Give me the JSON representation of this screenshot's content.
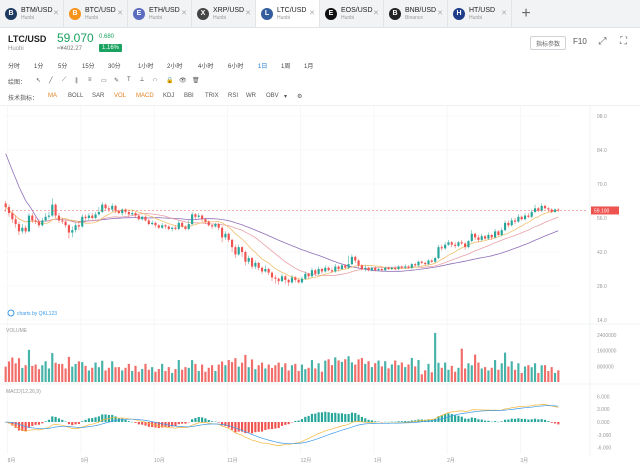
{
  "tabs": [
    {
      "symbol": "BTM/USD",
      "exchange": "Huobi",
      "icon": "btm-coin-icon",
      "color": "#1e3a5f",
      "active": false
    },
    {
      "symbol": "BTC/USD",
      "exchange": "Huobi",
      "icon": "btc-coin-icon",
      "color": "#f7931a",
      "active": false
    },
    {
      "symbol": "ETH/USD",
      "exchange": "Huobi",
      "icon": "eth-coin-icon",
      "color": "#5c6bc0",
      "active": false
    },
    {
      "symbol": "XRP/USD",
      "exchange": "Huobi",
      "icon": "xrp-coin-icon",
      "color": "#444",
      "active": false
    },
    {
      "symbol": "LTC/USD",
      "exchange": "Huobi",
      "icon": "ltc-coin-icon",
      "color": "#345d9d",
      "active": true
    },
    {
      "symbol": "EOS/USD",
      "exchange": "Huobi",
      "icon": "eos-coin-icon",
      "color": "#111",
      "active": false
    },
    {
      "symbol": "BNB/USD",
      "exchange": "Binance",
      "icon": "bnb-coin-icon",
      "color": "#222",
      "active": false
    },
    {
      "symbol": "HT/USD",
      "exchange": "Huobi",
      "icon": "ht-coin-icon",
      "color": "#1f3c88",
      "active": false
    }
  ],
  "add_tab": "+",
  "header": {
    "pair": "LTC/USD",
    "exchange": "Huobi",
    "price": "59.070",
    "change": "0.680",
    "cny": "≈¥402.27",
    "percent": "1.16%",
    "settings_label": "指标参数",
    "f10": "F10"
  },
  "timeframes": [
    "分时",
    "1分",
    "5分",
    "15分",
    "30分",
    "1小时",
    "2小时",
    "4小时",
    "6小时",
    "1日",
    "1周",
    "1月"
  ],
  "selected_timeframe": "1日",
  "tools": {
    "label": "绘图：",
    "icons": [
      "cursor-icon",
      "line-icon",
      "ray-icon",
      "parallel-icon",
      "fib-icon",
      "rect-icon",
      "brush-icon",
      "text-icon",
      "ruler-icon",
      "magnet-icon",
      "lock-icon",
      "eye-icon",
      "trash-icon"
    ]
  },
  "indicators": {
    "label": "技术指标：",
    "items": [
      "MA",
      "BOLL",
      "SAR",
      "VOL",
      "MACD",
      "KDJ",
      "BBI",
      "TRIX",
      "RSI",
      "WR",
      "OBV"
    ],
    "active": [
      "MA",
      "VOL",
      "MACD"
    ]
  },
  "chart_data": {
    "type": "candlestick",
    "x_ticks": [
      "8月",
      "9月",
      "10月",
      "11月",
      "12月",
      "1月",
      "2月",
      "3月"
    ],
    "price_axis": {
      "ticks": [
        98.0,
        84.0,
        70.0,
        56.0,
        42.0,
        28.0,
        14.0
      ],
      "range": [
        14,
        98
      ]
    },
    "last_price": 59.1,
    "last_price_label": "59.100",
    "watermark": "charts by QKL123",
    "candles": [
      [
        62.0,
        60.5,
        63.0,
        58.5
      ],
      [
        60.5,
        58.0,
        61.5,
        56.5
      ],
      [
        58.0,
        55.5,
        59.0,
        54.0
      ],
      [
        55.5,
        53.5,
        57.0,
        52.0
      ],
      [
        53.5,
        50.5,
        54.5,
        49.0
      ],
      [
        50.5,
        52.0,
        53.5,
        49.5
      ],
      [
        52.0,
        50.5,
        53.0,
        49.5
      ],
      [
        50.5,
        57.0,
        58.0,
        50.0
      ],
      [
        57.0,
        55.0,
        58.0,
        54.0
      ],
      [
        55.0,
        54.5,
        56.5,
        53.5
      ],
      [
        54.5,
        53.0,
        55.5,
        52.0
      ],
      [
        53.0,
        55.0,
        56.0,
        52.5
      ],
      [
        55.0,
        56.5,
        58.0,
        54.5
      ],
      [
        56.5,
        57.0,
        58.5,
        55.5
      ],
      [
        57.0,
        61.5,
        64.0,
        56.5
      ],
      [
        61.5,
        57.0,
        62.0,
        56.0
      ],
      [
        57.0,
        55.0,
        58.0,
        54.0
      ],
      [
        55.0,
        54.5,
        56.0,
        53.5
      ],
      [
        54.5,
        53.0,
        55.0,
        52.0
      ],
      [
        53.0,
        50.0,
        53.5,
        47.5
      ],
      [
        50.0,
        51.0,
        52.5,
        48.0
      ],
      [
        51.0,
        53.0,
        54.0,
        50.0
      ],
      [
        53.0,
        52.5,
        54.5,
        51.0
      ],
      [
        52.5,
        56.5,
        57.5,
        52.0
      ],
      [
        56.5,
        56.0,
        57.5,
        55.0
      ],
      [
        56.0,
        57.0,
        58.0,
        55.0
      ],
      [
        57.0,
        56.0,
        58.0,
        55.5
      ],
      [
        56.0,
        57.5,
        58.5,
        55.5
      ],
      [
        57.5,
        58.5,
        60.5,
        57.0
      ],
      [
        58.5,
        61.5,
        62.5,
        58.0
      ],
      [
        61.5,
        60.0,
        62.0,
        59.0
      ],
      [
        60.0,
        59.5,
        61.0,
        58.5
      ],
      [
        59.5,
        61.0,
        62.0,
        58.5
      ],
      [
        61.0,
        59.0,
        61.5,
        58.0
      ],
      [
        59.0,
        58.0,
        59.5,
        57.5
      ],
      [
        58.0,
        59.5,
        60.0,
        57.0
      ],
      [
        59.5,
        58.5,
        60.0,
        57.5
      ],
      [
        58.5,
        57.5,
        59.0,
        56.5
      ],
      [
        57.5,
        58.0,
        59.0,
        57.0
      ],
      [
        58.0,
        57.0,
        58.5,
        56.0
      ],
      [
        57.0,
        55.5,
        57.5,
        55.0
      ],
      [
        55.5,
        56.5,
        57.0,
        55.0
      ],
      [
        56.5,
        55.0,
        57.0,
        54.5
      ],
      [
        55.0,
        53.5,
        55.5,
        53.0
      ],
      [
        53.5,
        54.0,
        55.0,
        53.0
      ],
      [
        54.0,
        53.0,
        54.5,
        52.0
      ],
      [
        53.0,
        52.0,
        53.5,
        51.5
      ],
      [
        52.0,
        53.0,
        54.0,
        51.5
      ],
      [
        53.0,
        52.5,
        53.5,
        51.5
      ],
      [
        52.5,
        51.5,
        53.0,
        51.0
      ],
      [
        51.5,
        52.0,
        52.5,
        50.5
      ],
      [
        52.0,
        51.5,
        53.0,
        51.0
      ],
      [
        51.5,
        54.0,
        55.0,
        51.0
      ],
      [
        54.0,
        52.5,
        54.5,
        52.0
      ],
      [
        52.5,
        51.5,
        53.0,
        51.0
      ],
      [
        51.5,
        53.5,
        55.0,
        51.0
      ],
      [
        53.5,
        57.5,
        58.5,
        53.0
      ],
      [
        57.5,
        56.5,
        58.0,
        55.5
      ],
      [
        56.5,
        57.0,
        58.0,
        56.0
      ],
      [
        57.0,
        55.5,
        57.5,
        54.5
      ],
      [
        55.5,
        54.5,
        56.0,
        53.5
      ],
      [
        54.5,
        53.0,
        55.0,
        52.5
      ],
      [
        53.0,
        52.5,
        53.5,
        51.5
      ],
      [
        52.5,
        53.5,
        54.0,
        52.0
      ],
      [
        53.5,
        52.0,
        54.0,
        51.0
      ],
      [
        52.0,
        48.0,
        52.5,
        46.0
      ],
      [
        48.0,
        49.5,
        50.5,
        47.0
      ],
      [
        49.5,
        47.0,
        50.0,
        46.0
      ],
      [
        47.0,
        44.0,
        47.5,
        42.0
      ],
      [
        44.0,
        41.0,
        45.0,
        39.5
      ],
      [
        41.0,
        44.0,
        45.0,
        40.5
      ],
      [
        44.0,
        42.0,
        44.5,
        40.0
      ],
      [
        42.0,
        38.0,
        42.5,
        36.5
      ],
      [
        38.0,
        39.5,
        40.5,
        37.0
      ],
      [
        39.5,
        36.0,
        40.0,
        35.0
      ],
      [
        36.0,
        37.5,
        38.5,
        35.0
      ],
      [
        37.5,
        35.5,
        38.0,
        34.5
      ],
      [
        35.5,
        34.0,
        36.0,
        33.0
      ],
      [
        34.0,
        35.0,
        36.5,
        33.5
      ],
      [
        35.0,
        33.5,
        35.5,
        32.5
      ],
      [
        33.5,
        31.5,
        34.0,
        30.0
      ],
      [
        31.5,
        31.0,
        32.5,
        29.0
      ],
      [
        31.0,
        30.0,
        31.5,
        28.5
      ],
      [
        30.0,
        32.0,
        33.0,
        29.5
      ],
      [
        32.0,
        30.5,
        32.5,
        29.0
      ],
      [
        30.5,
        29.5,
        31.0,
        28.0
      ],
      [
        29.5,
        31.5,
        32.5,
        29.0
      ],
      [
        31.5,
        30.5,
        32.0,
        29.5
      ],
      [
        30.5,
        29.5,
        31.0,
        29.0
      ],
      [
        29.5,
        31.0,
        32.0,
        29.0
      ],
      [
        31.0,
        33.0,
        34.0,
        30.5
      ],
      [
        33.0,
        32.0,
        33.5,
        31.0
      ],
      [
        32.0,
        34.5,
        35.5,
        31.5
      ],
      [
        34.5,
        33.0,
        35.0,
        32.0
      ],
      [
        33.0,
        35.0,
        36.0,
        32.5
      ],
      [
        35.0,
        34.0,
        35.5,
        33.0
      ],
      [
        34.0,
        35.5,
        36.5,
        33.5
      ],
      [
        35.5,
        34.5,
        36.0,
        34.0
      ],
      [
        34.5,
        34.0,
        35.5,
        33.5
      ],
      [
        34.0,
        36.0,
        37.0,
        33.5
      ],
      [
        36.0,
        35.0,
        36.5,
        34.0
      ],
      [
        35.0,
        36.5,
        37.0,
        34.5
      ],
      [
        36.5,
        35.5,
        37.0,
        35.0
      ],
      [
        35.5,
        37.0,
        40.5,
        35.0
      ],
      [
        37.0,
        40.0,
        41.0,
        36.5
      ],
      [
        40.0,
        38.5,
        40.5,
        37.5
      ],
      [
        38.5,
        36.5,
        39.0,
        35.5
      ],
      [
        36.5,
        35.0,
        37.0,
        34.5
      ],
      [
        35.0,
        35.5,
        36.5,
        34.0
      ],
      [
        35.5,
        34.5,
        36.0,
        34.0
      ],
      [
        34.5,
        35.5,
        36.0,
        34.0
      ],
      [
        35.5,
        34.5,
        36.0,
        34.0
      ],
      [
        34.5,
        35.0,
        35.5,
        34.0
      ],
      [
        35.0,
        34.5,
        35.5,
        34.0
      ],
      [
        34.5,
        35.5,
        36.0,
        34.0
      ],
      [
        35.5,
        35.0,
        36.0,
        34.5
      ],
      [
        35.0,
        35.5,
        36.0,
        34.5
      ],
      [
        35.5,
        35.0,
        36.0,
        34.5
      ],
      [
        35.0,
        36.0,
        36.5,
        34.5
      ],
      [
        36.0,
        35.5,
        36.5,
        35.0
      ],
      [
        35.5,
        36.0,
        37.0,
        35.0
      ],
      [
        36.0,
        35.5,
        36.5,
        35.0
      ],
      [
        35.5,
        37.0,
        37.5,
        35.0
      ],
      [
        37.0,
        36.5,
        37.5,
        36.0
      ],
      [
        36.5,
        38.0,
        38.5,
        36.0
      ],
      [
        38.0,
        37.5,
        38.5,
        37.0
      ],
      [
        37.5,
        37.0,
        38.0,
        36.5
      ],
      [
        37.0,
        38.5,
        39.0,
        36.5
      ],
      [
        38.5,
        38.0,
        39.0,
        37.5
      ],
      [
        38.0,
        39.5,
        40.0,
        37.5
      ],
      [
        39.5,
        44.0,
        45.0,
        39.0
      ],
      [
        44.0,
        43.5,
        45.0,
        42.5
      ],
      [
        43.5,
        45.0,
        46.0,
        43.0
      ],
      [
        45.0,
        46.0,
        47.0,
        44.5
      ],
      [
        46.0,
        45.0,
        46.5,
        44.0
      ],
      [
        45.0,
        44.5,
        46.0,
        43.5
      ],
      [
        44.5,
        46.0,
        46.5,
        44.0
      ],
      [
        46.0,
        45.5,
        47.0,
        45.0
      ],
      [
        45.5,
        44.0,
        46.0,
        43.0
      ],
      [
        44.0,
        46.5,
        47.0,
        43.5
      ],
      [
        46.5,
        49.5,
        51.0,
        46.0
      ],
      [
        49.5,
        48.0,
        50.0,
        47.0
      ],
      [
        48.0,
        47.0,
        49.0,
        46.0
      ],
      [
        47.0,
        48.5,
        49.5,
        46.5
      ],
      [
        48.5,
        47.5,
        49.0,
        47.0
      ],
      [
        47.5,
        49.0,
        50.0,
        47.0
      ],
      [
        49.0,
        48.0,
        49.5,
        47.0
      ],
      [
        48.0,
        50.5,
        51.5,
        47.5
      ],
      [
        50.5,
        49.0,
        51.0,
        48.5
      ],
      [
        49.0,
        51.0,
        52.0,
        48.5
      ],
      [
        51.0,
        54.0,
        55.0,
        50.5
      ],
      [
        54.0,
        53.0,
        55.0,
        52.0
      ],
      [
        53.0,
        55.0,
        56.0,
        52.5
      ],
      [
        55.0,
        54.5,
        56.0,
        53.5
      ],
      [
        54.5,
        56.5,
        57.5,
        54.0
      ],
      [
        56.5,
        55.5,
        57.0,
        55.0
      ],
      [
        55.5,
        57.0,
        58.0,
        55.0
      ],
      [
        57.0,
        56.5,
        58.0,
        56.0
      ],
      [
        56.5,
        58.5,
        59.5,
        56.0
      ],
      [
        58.5,
        60.0,
        61.5,
        58.0
      ],
      [
        60.0,
        59.0,
        60.5,
        58.5
      ],
      [
        59.0,
        61.0,
        62.0,
        58.5
      ],
      [
        61.0,
        60.0,
        61.5,
        59.5
      ],
      [
        60.0,
        59.5,
        60.5,
        58.5
      ],
      [
        59.5,
        58.5,
        60.0,
        58.0
      ],
      [
        58.5,
        59.5,
        60.0,
        58.0
      ],
      [
        59.5,
        59.1,
        60.0,
        58.5
      ]
    ],
    "macd_axis": {
      "ticks": [
        6.0,
        3.0,
        0.0,
        -3.0,
        -6.0
      ],
      "labels": [
        "6.000",
        "3.000",
        "0.000",
        "-3.000",
        "-6.000"
      ]
    },
    "volume_axis": {
      "ticks": [
        24,
        16,
        8
      ],
      "labels": [
        "2400000",
        "1600000",
        "800000"
      ]
    },
    "volume_label": "VOLUME",
    "macd_label": "MACD(12,26,9)",
    "colors": {
      "up": "#26a69a",
      "down": "#ef5350",
      "ma_long": "#8e6fb8",
      "ma_mid": "#e8a0a8",
      "ma_short": "#f0c070",
      "dif": "#f5b63a",
      "dea": "#3d9be9"
    }
  }
}
